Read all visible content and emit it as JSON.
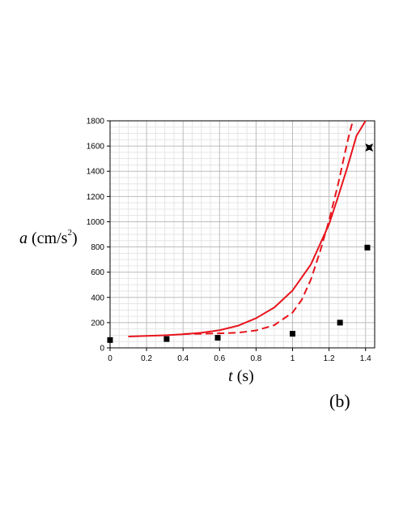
{
  "chart_data": {
    "type": "scatter",
    "panel_label": "(b)",
    "xlabel": {
      "italic": "t",
      "unit": " (s)"
    },
    "ylabel": {
      "italic": "a",
      "unit_open": " (cm/s",
      "unit_exp": "2",
      "unit_close": ")"
    },
    "xlim": [
      0,
      1.45
    ],
    "ylim": [
      0,
      1800
    ],
    "xticks": [
      0,
      0.2,
      0.4,
      0.6,
      0.8,
      1,
      1.2,
      1.4
    ],
    "xtick_labels": [
      "0",
      "0.2",
      "0.4",
      "0.6",
      "0.8",
      "1",
      "1.2",
      "1.4"
    ],
    "yticks": [
      0,
      200,
      400,
      600,
      800,
      1000,
      1200,
      1400,
      1600,
      1800
    ],
    "ytick_labels": [
      "0",
      "200",
      "400",
      "600",
      "800",
      "1000",
      "1200",
      "1400",
      "1600",
      "1800"
    ],
    "grid": true,
    "series": [
      {
        "kind": "points",
        "marker": "square",
        "color": "#000000",
        "x": [
          0.0,
          0.31,
          0.59,
          1.0,
          1.26,
          1.41
        ],
        "y": [
          62,
          70,
          80,
          112,
          200,
          795
        ]
      },
      {
        "kind": "points",
        "marker": "star",
        "color": "#000000",
        "x": [
          1.42
        ],
        "y": [
          1588
        ]
      },
      {
        "kind": "line",
        "style": "solid",
        "color": "#e8141c",
        "x": [
          0.1,
          0.2,
          0.3,
          0.4,
          0.5,
          0.6,
          0.7,
          0.8,
          0.9,
          1.0,
          1.1,
          1.2,
          1.25,
          1.3,
          1.35,
          1.4
        ],
        "y": [
          90,
          95,
          100,
          108,
          120,
          140,
          175,
          235,
          320,
          455,
          660,
          980,
          1200,
          1430,
          1680,
          1800
        ]
      },
      {
        "kind": "line",
        "style": "dashed",
        "color": "#e8141c",
        "x": [
          0.4,
          0.5,
          0.6,
          0.7,
          0.8,
          0.9,
          1.0,
          1.05,
          1.1,
          1.15,
          1.2,
          1.25,
          1.3,
          1.33
        ],
        "y": [
          110,
          112,
          115,
          120,
          138,
          180,
          280,
          380,
          540,
          760,
          1010,
          1300,
          1630,
          1800
        ]
      }
    ]
  }
}
